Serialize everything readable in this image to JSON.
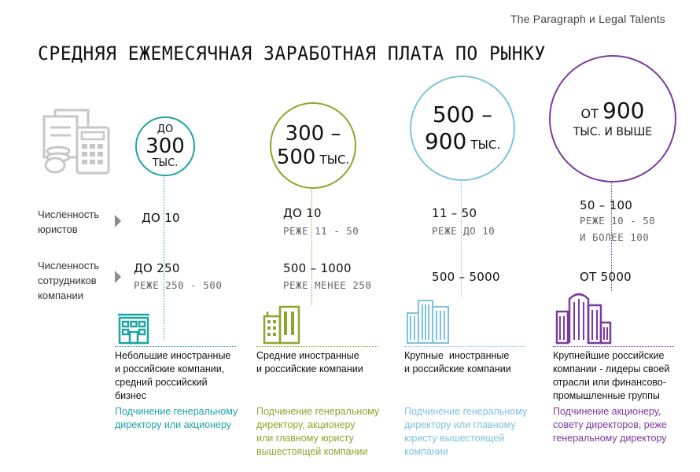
{
  "source": "The Paragraph и Legal Talents",
  "title": "СРЕДНЯЯ ЕЖЕМЕСЯЧНАЯ ЗАРАБОТНАЯ ПЛАТА ПО РЫНКУ",
  "row_labels": {
    "lawyers": [
      "Численность",
      "юристов"
    ],
    "employees": [
      "Численность",
      "сотрудников",
      "компании"
    ]
  },
  "columns": [
    {
      "color": "#20a3a3",
      "salary": [
        "ДО",
        "300",
        "ТЫС."
      ],
      "lawyers": "ДО 10",
      "lawyers_sub": "",
      "employees": "ДО 250",
      "employees_sub": "РЕЖЕ 250 - 500",
      "icon": "small-building-icon",
      "description": [
        "Небольшие иностранные",
        "и российские компании,",
        "средний российский",
        "бизнес"
      ],
      "subordination": [
        "Подчинение генеральному",
        "директору или акционеру"
      ]
    },
    {
      "color": "#8ea52d",
      "salary": [
        "300 –",
        "500",
        "ТЫС."
      ],
      "lawyers": "ДО 10",
      "lawyers_sub": "РЕЖЕ 11 - 50",
      "employees": "500 – 1000",
      "employees_sub": "РЕЖЕ МЕНЕЕ 250",
      "icon": "medium-buildings-icon",
      "description": [
        "Средние иностранные",
        "и российские компании"
      ],
      "subordination": [
        "Подчинение генеральному",
        "директору, акционеру",
        "или главному юристу",
        "вышестоящей компании"
      ]
    },
    {
      "color": "#7fc3dc",
      "salary": [
        "500 –",
        "900",
        "ТЫС."
      ],
      "lawyers": "11 – 50",
      "lawyers_sub": "РЕЖЕ ДО 10",
      "employees": "500 – 5000",
      "employees_sub": "",
      "icon": "large-buildings-icon",
      "description": [
        "Крупные  иностранные",
        "и российские компании"
      ],
      "subordination": [
        "Подчинение генеральному",
        "директору или главному",
        "юристу вышестоящей",
        "компании"
      ]
    },
    {
      "color": "#7b3aa0",
      "salary": [
        "ОТ",
        "900",
        "ТЫС. И ВЫШЕ"
      ],
      "lawyers": "50 – 100",
      "lawyers_sub": [
        "РЕЖЕ 10 - 50",
        "И БОЛЕЕ 100"
      ],
      "employees": "ОТ 5000",
      "employees_sub": "",
      "icon": "skyscrapers-icon",
      "description": [
        "Крупнейшие российские",
        "компании - лидеры своей",
        "отрасли или финансово-",
        "промышленные группы"
      ],
      "subordination": [
        "Подчинение акционеру,",
        "совету директоров, реже",
        "генеральному директору"
      ]
    }
  ]
}
